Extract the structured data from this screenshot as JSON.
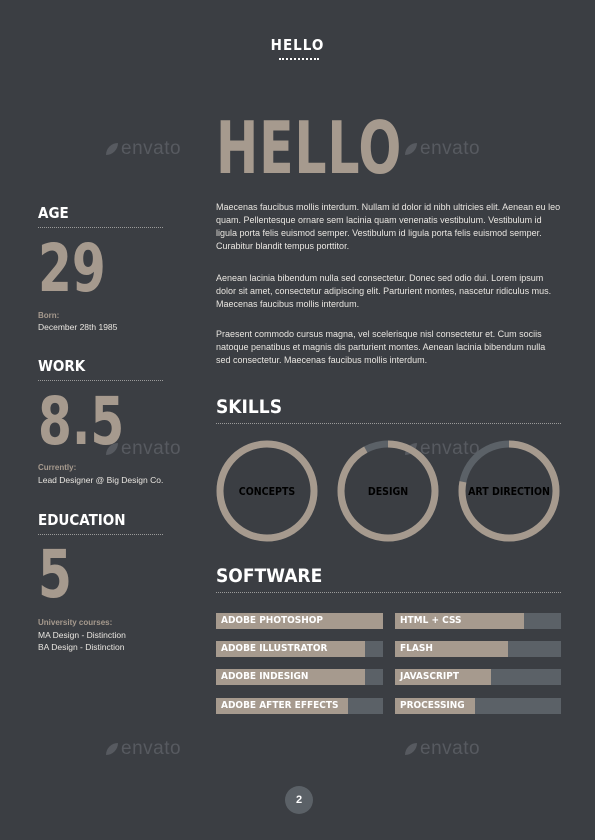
{
  "header": {
    "title": "HELLO"
  },
  "intro": {
    "heading": "HELLO",
    "paragraphs": [
      "Maecenas faucibus mollis interdum. Nullam id dolor id nibh ultricies elit. Aenean eu leo quam. Pellentesque ornare sem lacinia quam venenatis vestibulum. Vestibulum id ligula porta felis euismod semper. Vestibulum id ligula porta felis euismod semper. Curabitur blandit tempus porttitor.",
      "Aenean lacinia bibendum nulla sed consectetur. Donec sed odio dui. Lorem ipsum dolor sit amet, consectetur adipiscing elit. Parturient montes, nascetur ridiculus mus. Maecenas faucibus mollis interdum.",
      "Praesent commodo cursus magna, vel scelerisque nisl consectetur et. Cum sociis natoque penatibus et magnis dis parturient montes. Aenean lacinia bibendum nulla sed consectetur. Maecenas faucibus mollis interdum."
    ]
  },
  "sidebar": {
    "age": {
      "heading": "AGE",
      "value": "29",
      "label": "Born:",
      "detail": "December 28th 1985"
    },
    "work": {
      "heading": "WORK",
      "value": "8.5",
      "label": "Currently:",
      "detail": "Lead Designer @ Big Design Co."
    },
    "education": {
      "heading": "EDUCATION",
      "value": "5",
      "label": "University courses:",
      "details": [
        "MA Design - Distinction",
        "BA Design - Distinction"
      ]
    }
  },
  "skills": {
    "heading": "SKILLS",
    "items": [
      {
        "label": "CONCEPTS",
        "level": 1.0
      },
      {
        "label": "DESIGN",
        "level": 0.92
      },
      {
        "label": "ART DIRECTION",
        "level": 0.78
      }
    ]
  },
  "software": {
    "heading": "SOFTWARE",
    "left": [
      {
        "label": "ADOBE PHOTOSHOP",
        "level": 1.0
      },
      {
        "label": "ADOBE ILLUSTRATOR",
        "level": 0.89
      },
      {
        "label": "ADOBE INDESIGN",
        "level": 0.89
      },
      {
        "label": "ADOBE AFTER EFFECTS",
        "level": 0.79
      }
    ],
    "right": [
      {
        "label": "HTML + CSS",
        "level": 0.78
      },
      {
        "label": "FLASH",
        "level": 0.68
      },
      {
        "label": "JAVASCRIPT",
        "level": 0.58
      },
      {
        "label": "PROCESSING",
        "level": 0.48
      }
    ]
  },
  "watermark": "envato",
  "page_number": "2",
  "colors": {
    "background": "#3b3e43",
    "accent": "#a69a8e",
    "track": "#5b6167",
    "text": "#ffffff"
  }
}
